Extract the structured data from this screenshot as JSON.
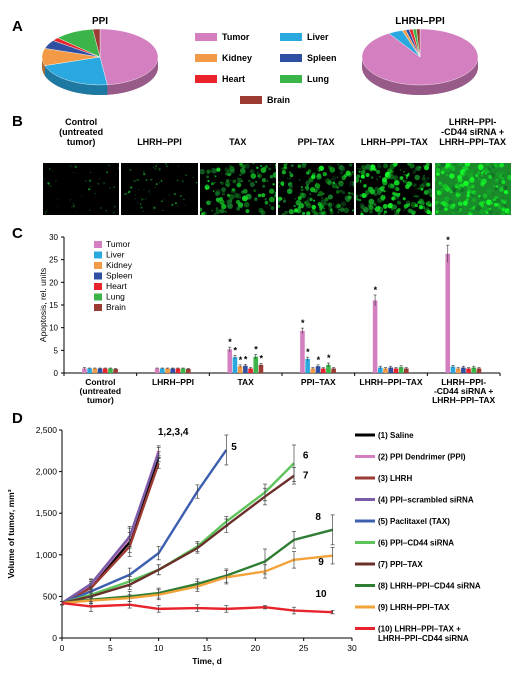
{
  "panels": {
    "A": "A",
    "B": "B",
    "C": "C",
    "D": "D"
  },
  "colors": {
    "Tumor": "#d47fbf",
    "Liver": "#29a9e0",
    "Kidney": "#f29a45",
    "Spleen": "#2e4fa2",
    "Heart": "#e8232b",
    "Lung": "#3bb54a",
    "Brain": "#9b3b33"
  },
  "pie_titles": {
    "ppi": "PPI",
    "lhrh": "LHRH–PPI"
  },
  "legendA": [
    {
      "name": "Tumor",
      "color": "#d47fbf"
    },
    {
      "name": "Liver",
      "color": "#29a9e0"
    },
    {
      "name": "Kidney",
      "color": "#f29a45"
    },
    {
      "name": "Spleen",
      "color": "#2e4fa2"
    },
    {
      "name": "Heart",
      "color": "#e8232b"
    },
    {
      "name": "Lung",
      "color": "#3bb54a"
    },
    {
      "name": "Brain",
      "color": "#9b3b33"
    }
  ],
  "micro_captions": [
    "Control\n(untreated\ntumor)",
    "LHRH–PPI",
    "TAX",
    "PPI–TAX",
    "LHRH–PPI–TAX",
    "LHRH–PPI-\n-CD44 siRNA +\nLHRH–PPI–TAX"
  ],
  "micro_intensity": [
    0.05,
    0.12,
    0.45,
    0.55,
    0.7,
    0.95
  ],
  "chart_data": [
    {
      "type": "pie",
      "title": "PPI",
      "categories": [
        "Tumor",
        "Liver",
        "Kidney",
        "Spleen",
        "Heart",
        "Lung",
        "Brain"
      ],
      "values": [
        48,
        22,
        10,
        5,
        2,
        11,
        2
      ]
    },
    {
      "type": "pie",
      "title": "LHRH–PPI",
      "categories": [
        "Tumor",
        "Liver",
        "Kidney",
        "Spleen",
        "Heart",
        "Lung",
        "Brain"
      ],
      "values": [
        91,
        4,
        1,
        1,
        1,
        1,
        1
      ]
    },
    {
      "type": "bar",
      "ylabel": "Apoptosis, rel. units",
      "ylim": [
        0,
        30
      ],
      "yticks": [
        "0",
        "5",
        "10",
        "15",
        "20",
        "25",
        "30"
      ],
      "categories": [
        "Control\n(untreated\ntumor)",
        "LHRH–PPI",
        "TAX",
        "PPI–TAX",
        "LHRH–PPI–TAX",
        "LHRH–PPI-\n-CD44 siRNA +\nLHRH–PPI–TAX"
      ],
      "series": [
        {
          "name": "Tumor",
          "values": [
            1.0,
            1.0,
            5.2,
            9.3,
            16.0,
            26.3
          ],
          "err": [
            0.2,
            0.1,
            0.5,
            0.6,
            1.2,
            1.9
          ]
        },
        {
          "name": "Liver",
          "values": [
            1.0,
            1.0,
            3.5,
            3.1,
            1.2,
            1.4
          ],
          "err": [
            0.1,
            0.1,
            0.4,
            0.4,
            0.3,
            0.3
          ]
        },
        {
          "name": "Kidney",
          "values": [
            1.0,
            1.0,
            1.5,
            1.0,
            1.0,
            1.0
          ],
          "err": [
            0.1,
            0.1,
            0.3,
            0.2,
            0.2,
            0.2
          ]
        },
        {
          "name": "Spleen",
          "values": [
            1.0,
            1.0,
            1.6,
            1.5,
            1.2,
            1.2
          ],
          "err": [
            0.1,
            0.1,
            0.3,
            0.3,
            0.3,
            0.3
          ]
        },
        {
          "name": "Heart",
          "values": [
            1.0,
            1.0,
            1.0,
            1.0,
            1.0,
            1.0
          ],
          "err": [
            0.1,
            0.1,
            0.2,
            0.2,
            0.2,
            0.2
          ]
        },
        {
          "name": "Lung",
          "values": [
            1.0,
            1.0,
            3.6,
            1.8,
            1.3,
            1.2
          ],
          "err": [
            0.1,
            0.1,
            0.5,
            0.4,
            0.3,
            0.3
          ]
        },
        {
          "name": "Brain",
          "values": [
            0.9,
            0.9,
            1.8,
            1.0,
            1.0,
            1.0
          ],
          "err": [
            0.1,
            0.1,
            0.3,
            0.2,
            0.2,
            0.2
          ]
        }
      ],
      "stars": [
        [
          2,
          0
        ],
        [
          2,
          1
        ],
        [
          2,
          2
        ],
        [
          2,
          3
        ],
        [
          2,
          5
        ],
        [
          2,
          6
        ],
        [
          3,
          0
        ],
        [
          3,
          1
        ],
        [
          3,
          3
        ],
        [
          3,
          5
        ],
        [
          4,
          0
        ],
        [
          5,
          0
        ]
      ],
      "star_symbol": "*"
    },
    {
      "type": "line",
      "xlabel": "Time, d",
      "ylabel": "Volume of tumor, mm³",
      "xlim": [
        0,
        30
      ],
      "ylim": [
        0,
        2500
      ],
      "xticks": [
        "0",
        "5",
        "10",
        "15",
        "20",
        "25",
        "30"
      ],
      "yticks": [
        "0",
        "500",
        "1,000",
        "1,500",
        "2,000",
        "2,500"
      ],
      "series": [
        {
          "name": "(1) Saline",
          "color": "#000000",
          "x": [
            0,
            3,
            7,
            10
          ],
          "y": [
            420,
            620,
            1150,
            2180
          ],
          "err": [
            20,
            60,
            120,
            60
          ]
        },
        {
          "name": "(2) PPI Dendrimer (PPI)",
          "color": "#d47fbf",
          "x": [
            0,
            3,
            7,
            10
          ],
          "y": [
            420,
            640,
            1200,
            2250
          ],
          "err": [
            20,
            60,
            120,
            60
          ]
        },
        {
          "name": "(3) LHRH",
          "color": "#9b3b33",
          "x": [
            0,
            3,
            7,
            10
          ],
          "y": [
            420,
            600,
            1100,
            2100
          ],
          "err": [
            20,
            60,
            120,
            60
          ]
        },
        {
          "name": "(4) PPI–scrambled siRNA",
          "color": "#7a5ca8",
          "x": [
            0,
            3,
            7,
            10
          ],
          "y": [
            420,
            650,
            1220,
            2230
          ],
          "err": [
            20,
            60,
            120,
            60
          ]
        },
        {
          "name": "(5) Paclitaxel (TAX)",
          "color": "#3d5fb0",
          "x": [
            0,
            3,
            7,
            10,
            14,
            17
          ],
          "y": [
            420,
            560,
            760,
            1020,
            1760,
            2260
          ],
          "err": [
            20,
            60,
            80,
            80,
            80,
            180
          ]
        },
        {
          "name": "(6) PPI–CD44 siRNA",
          "color": "#5cc45b",
          "x": [
            0,
            3,
            7,
            10,
            14,
            17,
            21,
            24
          ],
          "y": [
            420,
            520,
            680,
            820,
            1100,
            1400,
            1750,
            2100
          ],
          "err": [
            20,
            40,
            60,
            60,
            60,
            60,
            100,
            220
          ]
        },
        {
          "name": "(7) PPI–TAX",
          "color": "#6b2f2a",
          "x": [
            0,
            3,
            7,
            10,
            14,
            17,
            21,
            24
          ],
          "y": [
            420,
            500,
            640,
            820,
            1080,
            1350,
            1700,
            1950
          ],
          "err": [
            20,
            40,
            60,
            60,
            60,
            80,
            100,
            100
          ]
        },
        {
          "name": "(8) LHRH–PPI–CD44 siRNA",
          "color": "#2e7d32",
          "x": [
            0,
            3,
            7,
            10,
            14,
            17,
            21,
            24,
            28
          ],
          "y": [
            420,
            460,
            500,
            540,
            650,
            750,
            920,
            1180,
            1300
          ],
          "err": [
            20,
            40,
            60,
            60,
            60,
            80,
            150,
            100,
            180
          ]
        },
        {
          "name": "(9) LHRH–PPI–TAX",
          "color": "#f2a33a",
          "x": [
            0,
            3,
            7,
            10,
            14,
            17,
            21,
            24,
            28
          ],
          "y": [
            420,
            450,
            480,
            520,
            620,
            730,
            800,
            940,
            990
          ],
          "err": [
            20,
            40,
            40,
            60,
            60,
            80,
            80,
            100,
            100
          ]
        },
        {
          "name": "(10) LHRH–PPI–TAX +\nLHRH–PPI–CD44 siRNA",
          "color": "#e8232b",
          "x": [
            0,
            3,
            7,
            10,
            14,
            17,
            21,
            24,
            28
          ],
          "y": [
            420,
            380,
            400,
            350,
            360,
            350,
            370,
            330,
            310
          ],
          "err": [
            20,
            60,
            40,
            40,
            40,
            40,
            20,
            40,
            20
          ]
        }
      ],
      "annotations": [
        {
          "text": "1,2,3,4",
          "x": 11.5,
          "y": 2440
        },
        {
          "text": "5",
          "x": 17.8,
          "y": 2260
        },
        {
          "text": "6",
          "x": 25.2,
          "y": 2160
        },
        {
          "text": "7",
          "x": 25.2,
          "y": 1920
        },
        {
          "text": "8",
          "x": 26.5,
          "y": 1420
        },
        {
          "text": "9",
          "x": 26.8,
          "y": 880
        },
        {
          "text": "10",
          "x": 26.8,
          "y": 490
        }
      ]
    }
  ]
}
